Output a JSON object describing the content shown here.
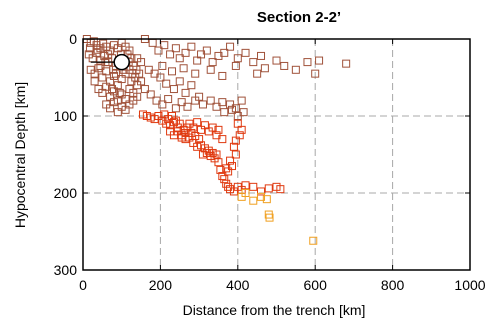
{
  "chart_data": {
    "type": "scatter",
    "title": "Section 2-2’",
    "xlabel": "Distance from the trench [km]",
    "ylabel": "Hypocentral Depth [km]",
    "xlim": [
      0,
      1000
    ],
    "ylim": [
      0,
      300
    ],
    "y_inverted": true,
    "x_ticks": [
      0,
      200,
      400,
      600,
      800,
      1000
    ],
    "y_ticks": [
      0,
      100,
      200,
      300
    ],
    "grid": "dashed",
    "marker": "open-square",
    "colors": {
      "shallow": "#a0523a",
      "intermediate": "#e03a10",
      "deep": "#f0a020",
      "grid": "#a8a8a8",
      "frame": "#000000",
      "mainshock_fill": "#ffffff",
      "mainshock_edge": "#000000"
    },
    "series": [
      {
        "group": "shallow",
        "points": [
          [
            10,
            0
          ],
          [
            20,
            5
          ],
          [
            28,
            3
          ],
          [
            35,
            8
          ],
          [
            45,
            12
          ],
          [
            52,
            6
          ],
          [
            60,
            10
          ],
          [
            70,
            15
          ],
          [
            80,
            8
          ],
          [
            90,
            12
          ],
          [
            100,
            5
          ],
          [
            110,
            10
          ],
          [
            120,
            15
          ],
          [
            15,
            20
          ],
          [
            25,
            25
          ],
          [
            35,
            18
          ],
          [
            45,
            28
          ],
          [
            55,
            22
          ],
          [
            65,
            30
          ],
          [
            75,
            25
          ],
          [
            85,
            35
          ],
          [
            95,
            28
          ],
          [
            105,
            32
          ],
          [
            115,
            20
          ],
          [
            125,
            25
          ],
          [
            20,
            40
          ],
          [
            30,
            45
          ],
          [
            40,
            38
          ],
          [
            50,
            50
          ],
          [
            60,
            42
          ],
          [
            70,
            55
          ],
          [
            80,
            48
          ],
          [
            90,
            60
          ],
          [
            100,
            52
          ],
          [
            110,
            45
          ],
          [
            120,
            40
          ],
          [
            130,
            35
          ],
          [
            40,
            65
          ],
          [
            50,
            70
          ],
          [
            60,
            62
          ],
          [
            70,
            75
          ],
          [
            80,
            68
          ],
          [
            90,
            80
          ],
          [
            100,
            72
          ],
          [
            110,
            78
          ],
          [
            120,
            65
          ],
          [
            130,
            70
          ],
          [
            140,
            60
          ],
          [
            60,
            85
          ],
          [
            70,
            90
          ],
          [
            80,
            82
          ],
          [
            90,
            95
          ],
          [
            100,
            88
          ],
          [
            110,
            92
          ],
          [
            120,
            85
          ],
          [
            130,
            80
          ],
          [
            140,
            75
          ],
          [
            150,
            55
          ],
          [
            30,
            55
          ],
          [
            45,
            35
          ],
          [
            65,
            20
          ],
          [
            85,
            45
          ],
          [
            105,
            40
          ],
          [
            125,
            55
          ],
          [
            135,
            50
          ],
          [
            145,
            45
          ],
          [
            150,
            30
          ],
          [
            140,
            25
          ],
          [
            18,
            12
          ],
          [
            38,
            14
          ],
          [
            58,
            30
          ],
          [
            78,
            40
          ],
          [
            98,
            20
          ],
          [
            118,
            30
          ],
          [
            128,
            45
          ],
          [
            138,
            40
          ],
          [
            95,
            70
          ],
          [
            75,
            65
          ],
          [
            160,
            0
          ],
          [
            180,
            5
          ],
          [
            195,
            15
          ],
          [
            210,
            8
          ],
          [
            225,
            20
          ],
          [
            240,
            12
          ],
          [
            250,
            25
          ],
          [
            265,
            18
          ],
          [
            280,
            10
          ],
          [
            295,
            28
          ],
          [
            305,
            20
          ],
          [
            320,
            15
          ],
          [
            335,
            30
          ],
          [
            350,
            22
          ],
          [
            365,
            18
          ],
          [
            380,
            10
          ],
          [
            400,
            25
          ],
          [
            420,
            18
          ],
          [
            440,
            30
          ],
          [
            460,
            22
          ],
          [
            170,
            40
          ],
          [
            185,
            45
          ],
          [
            205,
            35
          ],
          [
            230,
            42
          ],
          [
            260,
            38
          ],
          [
            290,
            45
          ],
          [
            330,
            40
          ],
          [
            360,
            48
          ],
          [
            395,
            35
          ],
          [
            450,
            45
          ],
          [
            520,
            35
          ],
          [
            550,
            40
          ],
          [
            580,
            30
          ],
          [
            610,
            28
          ],
          [
            680,
            32
          ],
          [
            600,
            45
          ],
          [
            500,
            28
          ],
          [
            470,
            38
          ],
          [
            160,
            65
          ],
          [
            175,
            72
          ],
          [
            190,
            80
          ],
          [
            205,
            85
          ],
          [
            220,
            78
          ],
          [
            240,
            90
          ],
          [
            255,
            82
          ],
          [
            270,
            88
          ],
          [
            290,
            80
          ],
          [
            310,
            85
          ],
          [
            330,
            80
          ],
          [
            345,
            88
          ],
          [
            360,
            82
          ],
          [
            380,
            85
          ],
          [
            395,
            90
          ],
          [
            410,
            80
          ],
          [
            415,
            95
          ],
          [
            400,
            100
          ],
          [
            385,
            92
          ],
          [
            365,
            95
          ],
          [
            300,
            75
          ],
          [
            280,
            60
          ],
          [
            265,
            70
          ],
          [
            250,
            55
          ],
          [
            235,
            65
          ],
          [
            215,
            58
          ],
          [
            200,
            50
          ]
        ]
      },
      {
        "group": "intermediate",
        "points": [
          [
            155,
            98
          ],
          [
            165,
            100
          ],
          [
            175,
            102
          ],
          [
            185,
            104
          ],
          [
            195,
            100
          ],
          [
            205,
            106
          ],
          [
            215,
            110
          ],
          [
            225,
            112
          ],
          [
            235,
            108
          ],
          [
            245,
            115
          ],
          [
            210,
            98
          ],
          [
            220,
            104
          ],
          [
            230,
            100
          ],
          [
            240,
            106
          ],
          [
            250,
            110
          ],
          [
            260,
            118
          ],
          [
            270,
            115
          ],
          [
            280,
            122
          ],
          [
            290,
            126
          ],
          [
            300,
            130
          ],
          [
            255,
            125
          ],
          [
            265,
            130
          ],
          [
            275,
            128
          ],
          [
            285,
            135
          ],
          [
            295,
            140
          ],
          [
            305,
            138
          ],
          [
            315,
            142
          ],
          [
            325,
            145
          ],
          [
            335,
            148
          ],
          [
            345,
            150
          ],
          [
            310,
            150
          ],
          [
            320,
            148
          ],
          [
            330,
            152
          ],
          [
            340,
            155
          ],
          [
            350,
            160
          ],
          [
            355,
            170
          ],
          [
            360,
            178
          ],
          [
            365,
            182
          ],
          [
            370,
            188
          ],
          [
            375,
            192
          ],
          [
            380,
            195
          ],
          [
            390,
            198
          ],
          [
            400,
            192
          ],
          [
            410,
            196
          ],
          [
            420,
            190
          ],
          [
            440,
            192
          ],
          [
            460,
            198
          ],
          [
            480,
            194
          ],
          [
            500,
            192
          ],
          [
            510,
            195
          ],
          [
            400,
            110
          ],
          [
            410,
            118
          ],
          [
            405,
            125
          ],
          [
            395,
            132
          ],
          [
            390,
            140
          ],
          [
            395,
            150
          ],
          [
            380,
            158
          ],
          [
            385,
            165
          ],
          [
            375,
            172
          ],
          [
            370,
            168
          ],
          [
            275,
            110
          ],
          [
            285,
            115
          ],
          [
            295,
            108
          ],
          [
            305,
            118
          ],
          [
            315,
            112
          ],
          [
            325,
            120
          ],
          [
            335,
            115
          ],
          [
            345,
            125
          ],
          [
            350,
            118
          ],
          [
            360,
            130
          ],
          [
            225,
            120
          ],
          [
            235,
            125
          ],
          [
            245,
            120
          ],
          [
            255,
            128
          ],
          [
            265,
            122
          ]
        ]
      },
      {
        "group": "deep",
        "points": [
          [
            410,
            205
          ],
          [
            420,
            200
          ],
          [
            440,
            210
          ],
          [
            460,
            205
          ],
          [
            475,
            208
          ],
          [
            480,
            228
          ],
          [
            482,
            232
          ],
          [
            595,
            262
          ]
        ]
      }
    ],
    "mainshock": {
      "x": 100,
      "y": 30
    },
    "mainshock_line": {
      "x_from": 20,
      "x_to": 100,
      "y": 30
    }
  }
}
